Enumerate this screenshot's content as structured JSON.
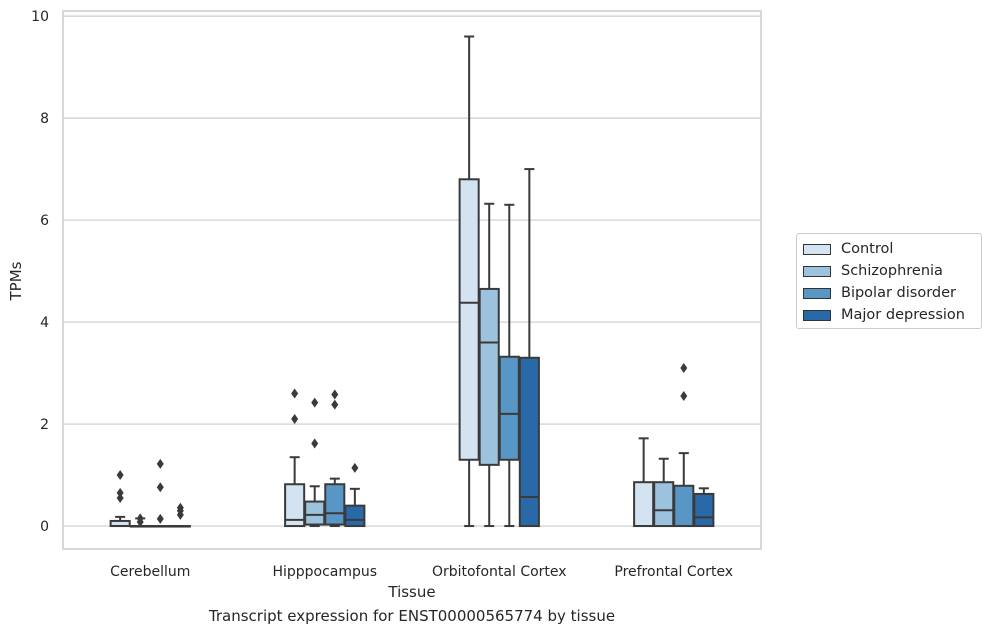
{
  "chart_data": {
    "type": "box",
    "xlabel": "Tissue",
    "ylabel": "TPMs",
    "caption": "Transcript expression for ENST00000565774 by tissue",
    "ylim": [
      -0.45,
      10.1
    ],
    "yticks": [
      0,
      2,
      4,
      6,
      8,
      10
    ],
    "grid": "horizontal",
    "legend_position": "right",
    "categories": [
      "Cerebellum",
      "Hipppocampus",
      "Orbitofontal Cortex",
      "Prefrontal Cortex"
    ],
    "series": [
      {
        "name": "Control",
        "color": "#d4e3f1",
        "boxes": [
          {
            "q1": 0,
            "median": 0,
            "q3": 0.1,
            "whisker_low": 0,
            "whisker_high": 0.18,
            "outliers": [
              0.55,
              0.65,
              1.0
            ]
          },
          {
            "q1": 0,
            "median": 0.12,
            "q3": 0.82,
            "whisker_low": 0,
            "whisker_high": 1.35,
            "outliers": [
              2.1,
              2.6
            ]
          },
          {
            "q1": 1.3,
            "median": 4.38,
            "q3": 6.8,
            "whisker_low": 0,
            "whisker_high": 9.6,
            "outliers": []
          },
          {
            "q1": 0,
            "median": 0,
            "q3": 0.86,
            "whisker_low": 0,
            "whisker_high": 1.72,
            "outliers": []
          }
        ]
      },
      {
        "name": "Schizophrenia",
        "color": "#9dc2dd",
        "boxes": [
          {
            "q1": 0,
            "median": 0,
            "q3": 0,
            "whisker_low": 0,
            "whisker_high": 0.15,
            "outliers": [
              0.08,
              0.15
            ]
          },
          {
            "q1": 0.03,
            "median": 0.22,
            "q3": 0.48,
            "whisker_low": 0,
            "whisker_high": 0.78,
            "outliers": [
              1.62,
              2.42
            ]
          },
          {
            "q1": 1.2,
            "median": 3.6,
            "q3": 4.65,
            "whisker_low": 0,
            "whisker_high": 6.32,
            "outliers": []
          },
          {
            "q1": 0,
            "median": 0.31,
            "q3": 0.86,
            "whisker_low": 0,
            "whisker_high": 1.32,
            "outliers": []
          }
        ]
      },
      {
        "name": "Bipolar disorder",
        "color": "#5796c5",
        "boxes": [
          {
            "q1": 0,
            "median": 0,
            "q3": 0,
            "whisker_low": 0,
            "whisker_high": 0,
            "outliers": [
              0.14,
              0.76,
              1.22
            ]
          },
          {
            "q1": 0.03,
            "median": 0.25,
            "q3": 0.82,
            "whisker_low": 0,
            "whisker_high": 0.93,
            "outliers": [
              2.38,
              2.58
            ]
          },
          {
            "q1": 1.3,
            "median": 2.2,
            "q3": 3.32,
            "whisker_low": 0,
            "whisker_high": 6.3,
            "outliers": []
          },
          {
            "q1": 0,
            "median": 0,
            "q3": 0.79,
            "whisker_low": 0,
            "whisker_high": 1.43,
            "outliers": [
              2.55,
              3.1
            ]
          }
        ]
      },
      {
        "name": "Major depression",
        "color": "#2a69a8",
        "boxes": [
          {
            "q1": 0,
            "median": 0,
            "q3": 0,
            "whisker_low": 0,
            "whisker_high": 0,
            "outliers": [
              0.22,
              0.3,
              0.36
            ]
          },
          {
            "q1": 0,
            "median": 0.12,
            "q3": 0.4,
            "whisker_low": 0,
            "whisker_high": 0.73,
            "outliers": [
              1.14
            ]
          },
          {
            "q1": 0,
            "median": 0.57,
            "q3": 3.3,
            "whisker_low": 0,
            "whisker_high": 7.0,
            "outliers": []
          },
          {
            "q1": 0,
            "median": 0.17,
            "q3": 0.63,
            "whisker_low": 0,
            "whisker_high": 0.74,
            "outliers": []
          }
        ]
      }
    ]
  }
}
